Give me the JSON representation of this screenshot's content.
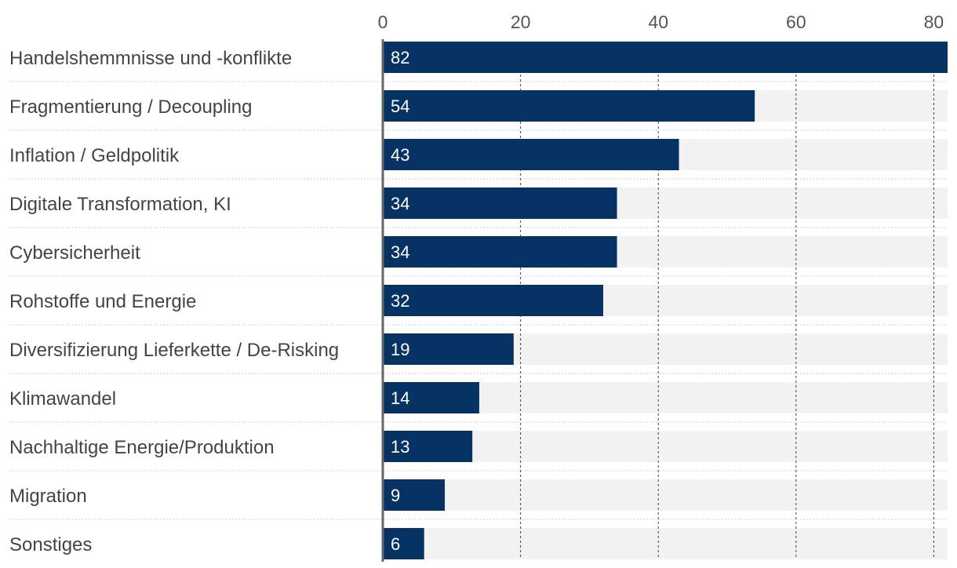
{
  "chart_data": {
    "type": "bar",
    "orientation": "horizontal",
    "title": "",
    "xlabel": "",
    "ylabel": "",
    "xlim": [
      0,
      82
    ],
    "ticks": [
      0,
      20,
      40,
      60,
      80
    ],
    "tick_labels": [
      "0",
      "20",
      "40",
      "60",
      "80"
    ],
    "grid": true,
    "bar_color": "#063264",
    "track_color": "#f2f2f2",
    "categories": [
      "Handelshemmnisse und -konflikte",
      "Fragmentierung / Decoupling",
      "Inflation / Geldpolitik",
      "Digitale Transformation, KI",
      "Cybersicherheit",
      "Rohstoffe und Energie",
      "Diversifizierung Lieferkette / De-Risking",
      "Klimawandel",
      "Nachhaltige Energie/Produktion",
      "Migration",
      "Sonstiges"
    ],
    "values": [
      82,
      54,
      43,
      34,
      34,
      32,
      19,
      14,
      13,
      9,
      6
    ],
    "value_labels": [
      "82",
      "54",
      "43",
      "34",
      "34",
      "32",
      "19",
      "14",
      "13",
      "9",
      "6"
    ]
  }
}
